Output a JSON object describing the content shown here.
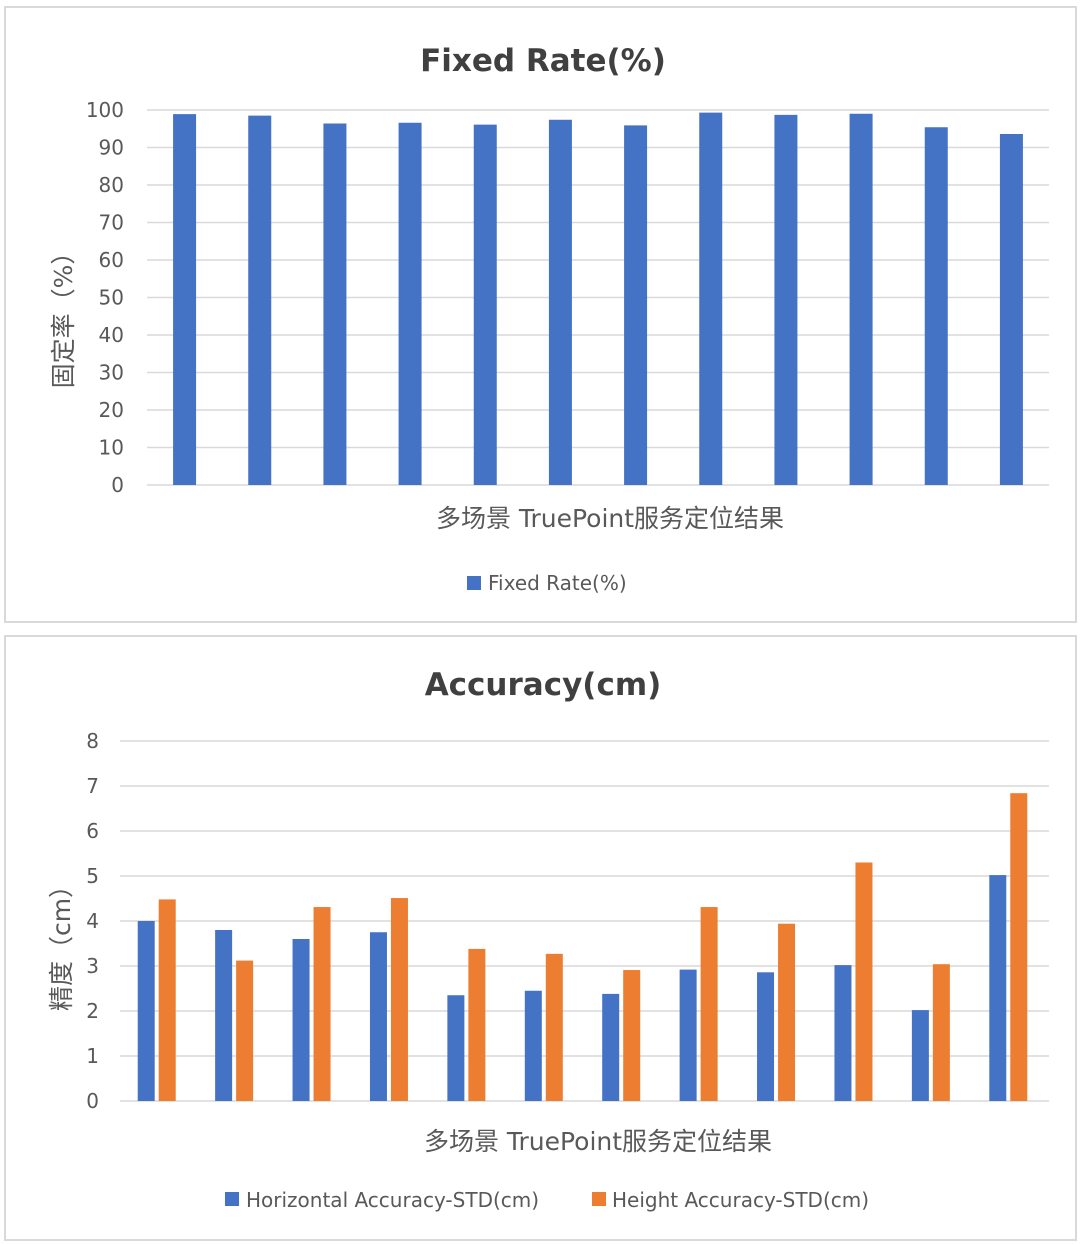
{
  "chart_data": [
    {
      "type": "bar",
      "title": "Fixed Rate(%)",
      "xlabel": "多场景 TruePoint服务定位结果",
      "ylabel": "固定率（%）",
      "ylim": [
        0,
        100
      ],
      "yticks": [
        0,
        10,
        20,
        30,
        40,
        50,
        60,
        70,
        80,
        90,
        100
      ],
      "categories": [
        "",
        "",
        "",
        "",
        "",
        "",
        "",
        "",
        "",
        "",
        "",
        ""
      ],
      "series": [
        {
          "name": "Fixed Rate(%)",
          "color": "#4472c4",
          "values": [
            98.9,
            98.5,
            96.4,
            96.6,
            96.1,
            97.4,
            95.9,
            99.3,
            98.7,
            99.0,
            95.4,
            93.6
          ]
        }
      ],
      "grid": true,
      "legend": "bottom"
    },
    {
      "type": "bar",
      "title": "Accuracy(cm)",
      "xlabel": "多场景 TruePoint服务定位结果",
      "ylabel": "精度（cm）",
      "ylim": [
        0,
        8
      ],
      "yticks": [
        0,
        1,
        2,
        3,
        4,
        5,
        6,
        7,
        8
      ],
      "categories": [
        "",
        "",
        "",
        "",
        "",
        "",
        "",
        "",
        "",
        "",
        "",
        ""
      ],
      "series": [
        {
          "name": "Horizontal Accuracy-STD(cm)",
          "color": "#4472c4",
          "values": [
            4.0,
            3.8,
            3.6,
            3.75,
            2.35,
            2.45,
            2.38,
            2.92,
            2.86,
            3.02,
            2.02,
            5.02
          ]
        },
        {
          "name": "Height Accuracy-STD(cm)",
          "color": "#ed7d31",
          "values": [
            4.48,
            3.12,
            4.31,
            4.51,
            3.38,
            3.27,
            2.91,
            4.31,
            3.94,
            5.3,
            3.04,
            6.84
          ]
        }
      ],
      "grid": true,
      "legend": "bottom"
    }
  ]
}
